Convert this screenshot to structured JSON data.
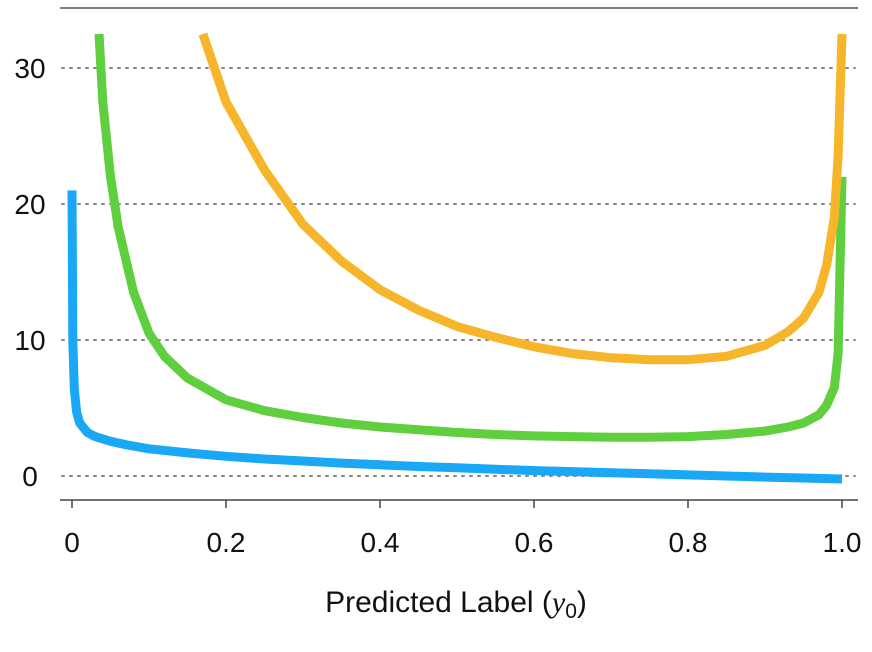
{
  "chart_data": {
    "type": "line",
    "title": "",
    "xlabel": {
      "text": "Predicted Label",
      "symbol": "y",
      "subscript": "0",
      "full": "Predicted Label (y0)"
    },
    "ylabel": "",
    "xlim": [
      0,
      1
    ],
    "ylim": [
      -2,
      34
    ],
    "xticks": [
      0,
      0.2,
      0.4,
      0.6,
      0.8,
      1.0
    ],
    "xtick_labels": [
      "0",
      "0.2",
      "0.4",
      "0.6",
      "0.8",
      "1.0"
    ],
    "yticks": [
      0,
      10,
      20,
      30
    ],
    "ytick_labels": [
      "0",
      "10",
      "20",
      "30"
    ],
    "grid": "horizontal dotted",
    "legend": "none",
    "series": [
      {
        "color": "#1aa7f5",
        "x": [
          0.0,
          0.001,
          0.003,
          0.006,
          0.01,
          0.02,
          0.03,
          0.05,
          0.07,
          0.1,
          0.15,
          0.2,
          0.25,
          0.3,
          0.35,
          0.4,
          0.45,
          0.5,
          0.55,
          0.6,
          0.65,
          0.7,
          0.75,
          0.8,
          0.85,
          0.9,
          0.95,
          1.0
        ],
        "y": [
          21.0,
          10.0,
          6.4,
          4.7,
          3.9,
          3.2,
          2.9,
          2.55,
          2.3,
          2.0,
          1.7,
          1.45,
          1.25,
          1.1,
          0.95,
          0.82,
          0.7,
          0.6,
          0.5,
          0.4,
          0.32,
          0.24,
          0.16,
          0.08,
          0.0,
          -0.08,
          -0.15,
          -0.22
        ]
      },
      {
        "color": "#5fcf3f",
        "x": [
          0.035,
          0.04,
          0.05,
          0.06,
          0.08,
          0.1,
          0.12,
          0.15,
          0.2,
          0.25,
          0.3,
          0.35,
          0.4,
          0.45,
          0.5,
          0.55,
          0.6,
          0.65,
          0.7,
          0.75,
          0.8,
          0.85,
          0.9,
          0.93,
          0.95,
          0.97,
          0.98,
          0.99,
          0.995,
          1.0
        ],
        "y": [
          32.5,
          27.5,
          22.0,
          18.3,
          13.5,
          10.5,
          8.8,
          7.2,
          5.6,
          4.8,
          4.3,
          3.9,
          3.6,
          3.4,
          3.2,
          3.05,
          2.95,
          2.9,
          2.85,
          2.85,
          2.9,
          3.05,
          3.3,
          3.6,
          3.9,
          4.5,
          5.2,
          6.5,
          9.0,
          22.0
        ]
      },
      {
        "color": "#f6b52b",
        "x": [
          0.17,
          0.2,
          0.25,
          0.3,
          0.35,
          0.4,
          0.45,
          0.5,
          0.55,
          0.6,
          0.65,
          0.7,
          0.75,
          0.8,
          0.85,
          0.9,
          0.93,
          0.95,
          0.97,
          0.98,
          0.99,
          0.995,
          1.0
        ],
        "y": [
          32.5,
          27.5,
          22.5,
          18.5,
          15.8,
          13.7,
          12.2,
          11.0,
          10.2,
          9.5,
          9.0,
          8.7,
          8.55,
          8.55,
          8.8,
          9.6,
          10.6,
          11.6,
          13.5,
          15.5,
          19.0,
          23.5,
          32.5
        ]
      }
    ]
  }
}
